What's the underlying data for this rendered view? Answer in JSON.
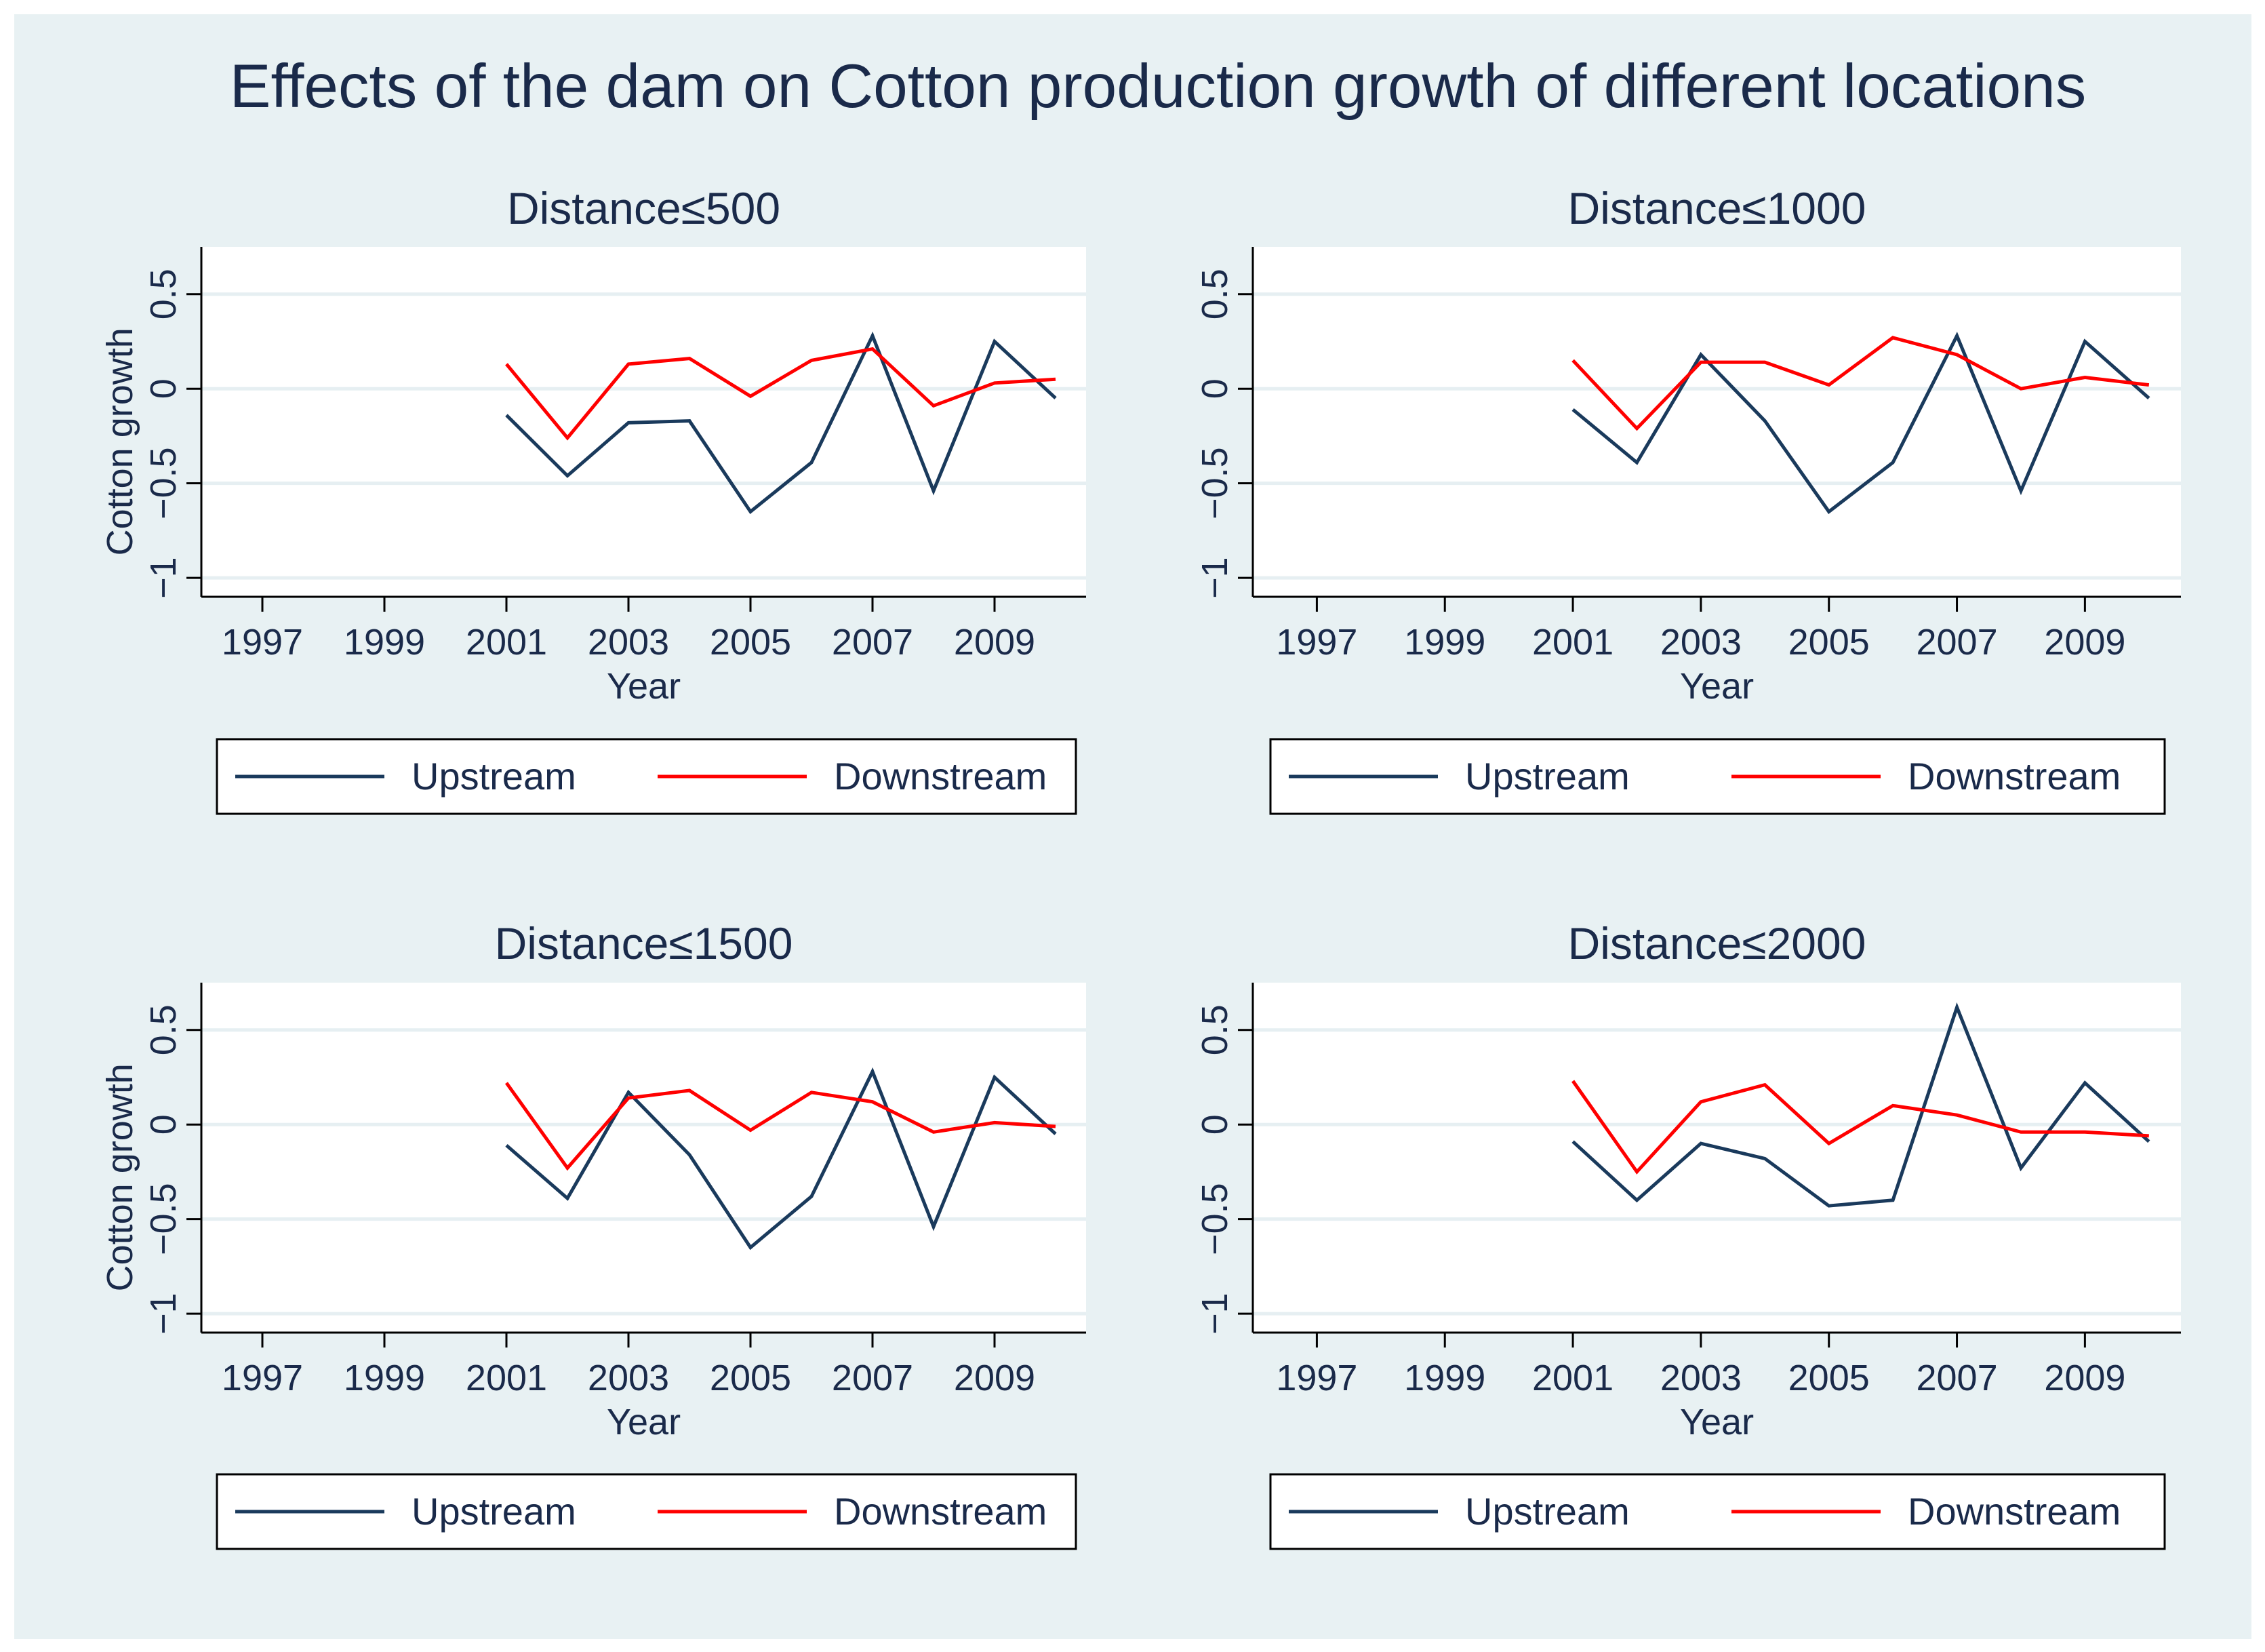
{
  "colors": {
    "outer_background": "#e8f1f3",
    "plot_background": "#ffffff",
    "grid": "#e6eff2",
    "text": "#1a2a4a",
    "upstream": "#1a3a5c",
    "downstream": "#ff0000"
  },
  "chart_data": {
    "type": "line",
    "title": "Effects of the dam on Cotton production growth of different locations",
    "panels": [
      {
        "subtitle": "Distance≤500",
        "xlabel": "Year",
        "ylabel": "Cotton growth",
        "show_ylabel": true,
        "xlim": [
          1996,
          2010.5
        ],
        "ylim": [
          -1.1,
          0.75
        ],
        "xticks": [
          1997,
          1999,
          2001,
          2003,
          2005,
          2007,
          2009
        ],
        "yticks": [
          0.5,
          0,
          -0.5,
          -1
        ],
        "ytick_labels": [
          "0.5",
          "0",
          "−0.5",
          "−1"
        ],
        "x": [
          2001,
          2002,
          2003,
          2004,
          2005,
          2006,
          2007,
          2008,
          2009,
          2010
        ],
        "series": [
          {
            "name": "Upstream",
            "values": [
              -0.14,
              -0.46,
              -0.18,
              -0.17,
              -0.65,
              -0.39,
              0.28,
              -0.54,
              0.25,
              -0.05
            ]
          },
          {
            "name": "Downstream",
            "values": [
              0.13,
              -0.26,
              0.13,
              0.16,
              -0.04,
              0.15,
              0.21,
              -0.09,
              0.03,
              0.05
            ]
          }
        ],
        "legend": [
          "Upstream",
          "Downstream"
        ]
      },
      {
        "subtitle": "Distance≤1000",
        "xlabel": "Year",
        "ylabel": "",
        "show_ylabel": false,
        "xlim": [
          1996,
          2010.5
        ],
        "ylim": [
          -1.1,
          0.75
        ],
        "xticks": [
          1997,
          1999,
          2001,
          2003,
          2005,
          2007,
          2009
        ],
        "yticks": [
          0.5,
          0,
          -0.5,
          -1
        ],
        "ytick_labels": [
          "0.5",
          "0",
          "−0.5",
          "−1"
        ],
        "x": [
          2001,
          2002,
          2003,
          2004,
          2005,
          2006,
          2007,
          2008,
          2009,
          2010
        ],
        "series": [
          {
            "name": "Upstream",
            "values": [
              -0.11,
              -0.39,
              0.18,
              -0.17,
              -0.65,
              -0.39,
              0.28,
              -0.54,
              0.25,
              -0.05
            ]
          },
          {
            "name": "Downstream",
            "values": [
              0.15,
              -0.21,
              0.14,
              0.14,
              0.02,
              0.27,
              0.18,
              0.0,
              0.06,
              0.02
            ]
          }
        ],
        "legend": [
          "Upstream",
          "Downstream"
        ]
      },
      {
        "subtitle": "Distance≤1500",
        "xlabel": "Year",
        "ylabel": "Cotton growth",
        "show_ylabel": true,
        "xlim": [
          1996,
          2010.5
        ],
        "ylim": [
          -1.1,
          0.75
        ],
        "xticks": [
          1997,
          1999,
          2001,
          2003,
          2005,
          2007,
          2009
        ],
        "yticks": [
          0.5,
          0,
          -0.5,
          -1
        ],
        "ytick_labels": [
          "0.5",
          "0",
          "−0.5",
          "−1"
        ],
        "x": [
          2001,
          2002,
          2003,
          2004,
          2005,
          2006,
          2007,
          2008,
          2009,
          2010
        ],
        "series": [
          {
            "name": "Upstream",
            "values": [
              -0.11,
              -0.39,
              0.17,
              -0.16,
              -0.65,
              -0.38,
              0.28,
              -0.54,
              0.25,
              -0.05
            ]
          },
          {
            "name": "Downstream",
            "values": [
              0.22,
              -0.23,
              0.14,
              0.18,
              -0.03,
              0.17,
              0.12,
              -0.04,
              0.01,
              -0.01
            ]
          }
        ],
        "legend": [
          "Upstream",
          "Downstream"
        ]
      },
      {
        "subtitle": "Distance≤2000",
        "xlabel": "Year",
        "ylabel": "",
        "show_ylabel": false,
        "xlim": [
          1996,
          2010.5
        ],
        "ylim": [
          -1.1,
          0.75
        ],
        "xticks": [
          1997,
          1999,
          2001,
          2003,
          2005,
          2007,
          2009
        ],
        "yticks": [
          0.5,
          0,
          -0.5,
          -1
        ],
        "ytick_labels": [
          "0.5",
          "0",
          "−0.5",
          "−1"
        ],
        "x": [
          2001,
          2002,
          2003,
          2004,
          2005,
          2006,
          2007,
          2008,
          2009,
          2010
        ],
        "series": [
          {
            "name": "Upstream",
            "values": [
              -0.09,
              -0.4,
              -0.1,
              -0.18,
              -0.43,
              -0.4,
              0.62,
              -0.23,
              0.22,
              -0.09
            ]
          },
          {
            "name": "Downstream",
            "values": [
              0.23,
              -0.25,
              0.12,
              0.21,
              -0.1,
              0.1,
              0.05,
              -0.04,
              -0.04,
              -0.06
            ]
          }
        ],
        "legend": [
          "Upstream",
          "Downstream"
        ]
      }
    ]
  }
}
